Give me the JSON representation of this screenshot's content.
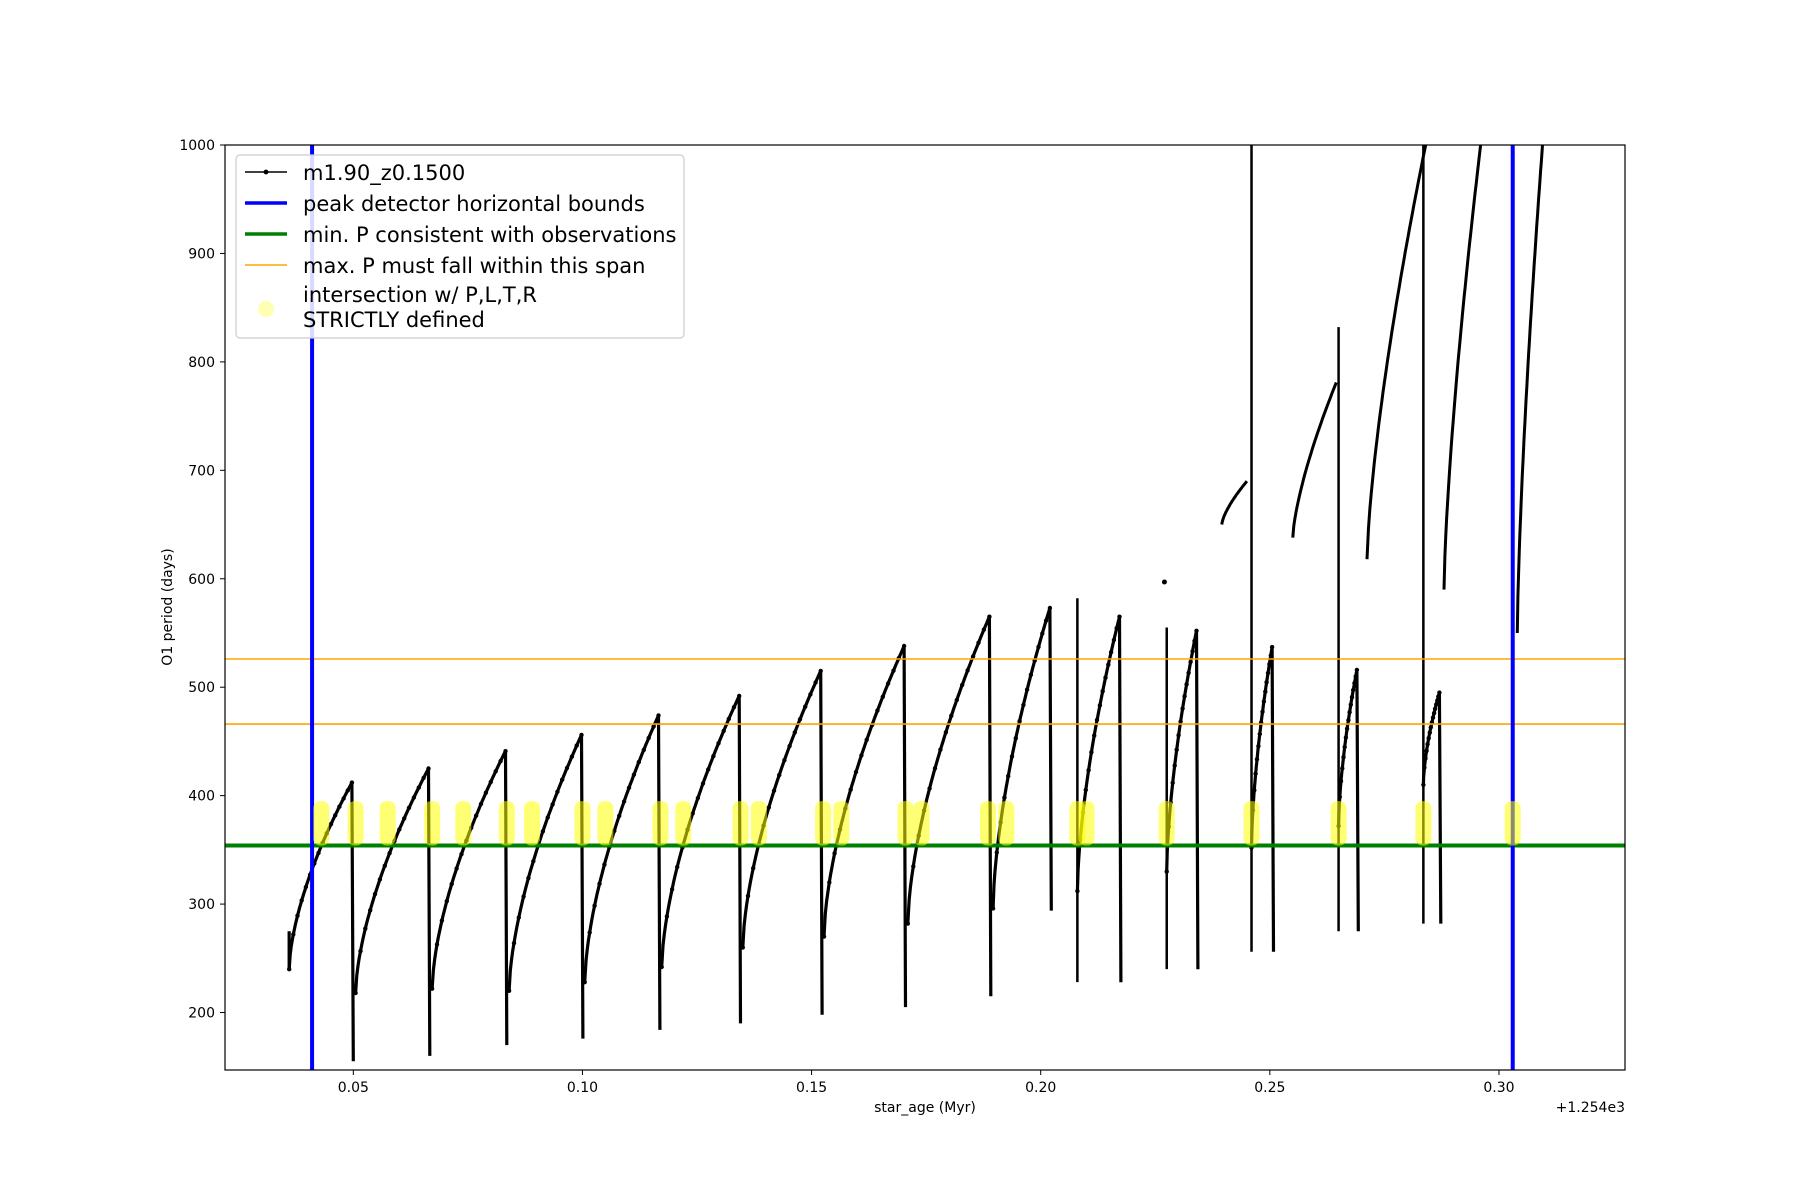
{
  "chart_data": {
    "type": "line",
    "xlabel": "star_age (Myr)",
    "ylabel": "O1 period (days)",
    "x_offset_label": "+1.254e3",
    "xlim": [
      0.022,
      0.3275
    ],
    "ylim": [
      147,
      1000
    ],
    "x_ticks": [
      0.05,
      0.1,
      0.15,
      0.2,
      0.25,
      0.3
    ],
    "x_tick_labels": [
      "0.05",
      "0.10",
      "0.15",
      "0.20",
      "0.25",
      "0.30"
    ],
    "y_ticks": [
      200,
      300,
      400,
      500,
      600,
      700,
      800,
      900,
      1000
    ],
    "y_tick_labels": [
      "200",
      "300",
      "400",
      "500",
      "600",
      "700",
      "800",
      "900",
      "1000"
    ],
    "legend": [
      {
        "label": "m1.90_z0.1500",
        "color": "#000000",
        "kind": "line-marker"
      },
      {
        "label": "peak detector horizontal bounds",
        "color": "#0000ff",
        "kind": "thick-line"
      },
      {
        "label": "min. P consistent with observations",
        "color": "#008000",
        "kind": "thick-line"
      },
      {
        "label": "max. P must fall within this span",
        "color": "#ffa500",
        "kind": "thin-line"
      },
      {
        "label": "intersection w/ P,L,T,R",
        "label_line2": "STRICTLY defined",
        "color": "#ffff00",
        "kind": "marker"
      }
    ],
    "legend_position": "upper-left",
    "vlines": {
      "name": "peak detector horizontal bounds",
      "color": "#0000ff",
      "x": [
        0.041,
        0.303
      ]
    },
    "hline_min": {
      "name": "min. P consistent with observations",
      "color": "#008000",
      "y": 354
    },
    "hlines_max": {
      "name": "max. P must fall within this span",
      "color": "#ffa500",
      "y": [
        466,
        526
      ]
    },
    "series": [
      {
        "name": "m1.90_z0.1500",
        "color": "#000000",
        "segments": [
          {
            "x0": 0.036,
            "x1": 0.0497,
            "y0": 240,
            "y1": 412,
            "drop_to": 155,
            "pre": 275
          },
          {
            "x0": 0.0505,
            "x1": 0.0664,
            "y0": 218,
            "y1": 425,
            "drop_to": 160
          },
          {
            "x0": 0.0672,
            "x1": 0.0832,
            "y0": 222,
            "y1": 441,
            "drop_to": 170
          },
          {
            "x0": 0.084,
            "x1": 0.0998,
            "y0": 220,
            "y1": 456,
            "drop_to": 176
          },
          {
            "x0": 0.1005,
            "x1": 0.1166,
            "y0": 228,
            "y1": 474,
            "drop_to": 184
          },
          {
            "x0": 0.1173,
            "x1": 0.1342,
            "y0": 242,
            "y1": 492,
            "drop_to": 190
          },
          {
            "x0": 0.135,
            "x1": 0.152,
            "y0": 260,
            "y1": 515,
            "drop_to": 198
          },
          {
            "x0": 0.1527,
            "x1": 0.1702,
            "y0": 270,
            "y1": 538,
            "drop_to": 205
          },
          {
            "x0": 0.171,
            "x1": 0.1888,
            "y0": 282,
            "y1": 565,
            "drop_to": 215
          },
          {
            "x0": 0.1896,
            "x1": 0.202,
            "y0": 296,
            "y1": 573,
            "drop_to": 294
          },
          {
            "x0": 0.208,
            "x1": 0.2172,
            "y0": 312,
            "y1": 565,
            "drop_to": 228,
            "spike": 582
          },
          {
            "x0": 0.2275,
            "x1": 0.234,
            "y0": 330,
            "y1": 552,
            "drop_to": 240,
            "spike": 555
          },
          {
            "x0": 0.246,
            "x1": 0.2505,
            "y0": 352,
            "y1": 537,
            "drop_to": 256,
            "spike": 1000
          },
          {
            "x0": 0.265,
            "x1": 0.269,
            "y0": 372,
            "y1": 516,
            "drop_to": 275,
            "spike": 832
          },
          {
            "x0": 0.2835,
            "x1": 0.287,
            "y0": 410,
            "y1": 495,
            "drop_to": 282,
            "spike": 1000
          }
        ],
        "upper_branches": [
          {
            "x0": 0.2395,
            "x1": 0.245,
            "y0": 650,
            "y1": 690
          },
          {
            "x0": 0.255,
            "x1": 0.2645,
            "y0": 638,
            "y1": 781
          },
          {
            "x0": 0.2712,
            "x1": 0.284,
            "y0": 618,
            "y1": 1000
          },
          {
            "x0": 0.288,
            "x1": 0.296,
            "y0": 590,
            "y1": 1000
          },
          {
            "x0": 0.304,
            "x1": 0.3095,
            "y0": 550,
            "y1": 1000
          }
        ],
        "outliers": [
          {
            "x": 0.227,
            "y": 597
          }
        ]
      }
    ],
    "intersections": {
      "name": "intersection w/ P,L,T,R STRICTLY defined",
      "color": "#ffff00",
      "y_range": [
        354,
        395
      ],
      "x": [
        0.043,
        0.0505,
        0.0575,
        0.0672,
        0.074,
        0.0835,
        0.089,
        0.1,
        0.105,
        0.117,
        0.122,
        0.1345,
        0.1385,
        0.1525,
        0.1565,
        0.1705,
        0.174,
        0.1885,
        0.1925,
        0.208,
        0.21,
        0.2275,
        0.246,
        0.265,
        0.2835,
        0.303
      ]
    }
  }
}
